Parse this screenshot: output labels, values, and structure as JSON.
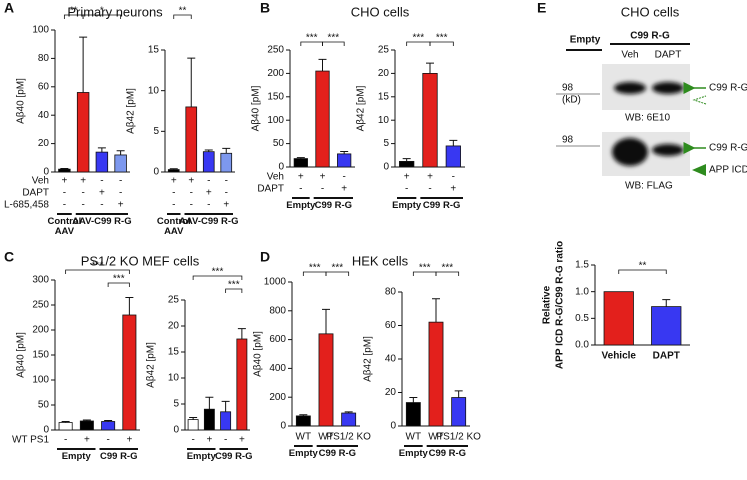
{
  "panels": [
    {
      "letter": "A",
      "title": "Primary neurons"
    },
    {
      "letter": "B",
      "title": "CHO cells"
    },
    {
      "letter": "C",
      "title": "PS1/2 KO MEF cells"
    },
    {
      "letter": "D",
      "title": "HEK cells"
    },
    {
      "letter": "E",
      "title": "CHO cells"
    }
  ],
  "blot": {
    "header_empty": "Empty",
    "header_group": "C99 R-G",
    "lanes": [
      "Veh",
      "DAPT"
    ],
    "marker_1": "98",
    "unit": "(kD)",
    "band_1": "C99 R-G",
    "antibody_1": "WB: 6E10",
    "marker_2": "98",
    "band_2": "C99 R-G",
    "band_3": "APP ICD R-G",
    "antibody_2": "WB: FLAG"
  },
  "chart_data": [
    {
      "type": "bar",
      "ylabel": "Aβ40 [pM]",
      "ylim": [
        0,
        100
      ],
      "yticks": [
        0,
        20,
        40,
        60,
        80,
        100
      ],
      "values": [
        2,
        56,
        14,
        12
      ],
      "errors": [
        0.5,
        39,
        3,
        3
      ],
      "colors": [
        "#000000",
        "#e3201c",
        "#3838f2",
        "#7d98ee"
      ],
      "row_labels": [
        "Veh",
        "DAPT",
        "L-685,458"
      ],
      "rows": [
        [
          "+",
          "+",
          "-",
          "-"
        ],
        [
          "-",
          "-",
          "+",
          "-"
        ],
        [
          "-",
          "-",
          "-",
          "+"
        ]
      ],
      "groups": [
        "Control AAV",
        "AAV-C99 R-G"
      ],
      "annotations": [
        "**",
        "*"
      ]
    },
    {
      "type": "bar",
      "ylabel": "Aβ42 [pM]",
      "ylim": [
        0,
        15
      ],
      "yticks": [
        0,
        5,
        10,
        15
      ],
      "values": [
        0.3,
        8,
        2.5,
        2.3
      ],
      "errors": [
        0.1,
        6,
        0.2,
        0.6
      ],
      "colors": [
        "#000000",
        "#e3201c",
        "#3838f2",
        "#7d98ee"
      ],
      "rows": [
        [
          "+",
          "+",
          "-",
          "-"
        ],
        [
          "-",
          "-",
          "+",
          "-"
        ],
        [
          "-",
          "-",
          "-",
          "+"
        ]
      ],
      "groups": [
        "Control AAV",
        "AAV-C99 R-G"
      ],
      "annotations": [
        "**"
      ]
    },
    {
      "type": "bar",
      "ylabel": "Aβ40 [pM]",
      "ylim": [
        0,
        250
      ],
      "yticks": [
        0,
        50,
        100,
        150,
        200,
        250
      ],
      "values": [
        18,
        205,
        28
      ],
      "errors": [
        2,
        25,
        5
      ],
      "colors": [
        "#000000",
        "#e3201c",
        "#3838f2"
      ],
      "row_labels": [
        "Veh",
        "DAPT"
      ],
      "rows": [
        [
          "+",
          "+",
          "-"
        ],
        [
          "-",
          "-",
          "+"
        ]
      ],
      "groups": [
        "Empty",
        "C99 R-G"
      ],
      "annotations": [
        "***",
        "***"
      ]
    },
    {
      "type": "bar",
      "ylabel": "Aβ42 [pM]",
      "ylim": [
        0,
        25
      ],
      "yticks": [
        0,
        5,
        10,
        15,
        20,
        25
      ],
      "values": [
        1.2,
        20,
        4.5
      ],
      "errors": [
        0.6,
        2.2,
        1.2
      ],
      "colors": [
        "#000000",
        "#e3201c",
        "#3838f2"
      ],
      "rows": [
        [
          "+",
          "+",
          "-"
        ],
        [
          "-",
          "-",
          "+"
        ]
      ],
      "groups": [
        "Empty",
        "C99 R-G"
      ],
      "annotations": [
        "***",
        "***"
      ]
    },
    {
      "type": "bar",
      "ylabel": "Aβ40 [pM]",
      "ylim": [
        0,
        300
      ],
      "yticks": [
        0,
        50,
        100,
        150,
        200,
        250,
        300
      ],
      "values": [
        15,
        18,
        17,
        230
      ],
      "errors": [
        2,
        2,
        2,
        35
      ],
      "colors": [
        "#ffffff",
        "#000000",
        "#3838f2",
        "#e3201c"
      ],
      "row_labels": [
        "WT PS1"
      ],
      "rows": [
        [
          "-",
          "+",
          "-",
          "+"
        ]
      ],
      "groups": [
        "Empty",
        "C99 R-G"
      ],
      "annotations": [
        "***",
        "***"
      ]
    },
    {
      "type": "bar",
      "ylabel": "Aβ42 [pM]",
      "ylim": [
        0,
        25
      ],
      "yticks": [
        0,
        5,
        10,
        15,
        20,
        25
      ],
      "values": [
        2,
        4,
        3.5,
        17.5
      ],
      "errors": [
        0.4,
        2.3,
        2,
        2
      ],
      "colors": [
        "#ffffff",
        "#000000",
        "#3838f2",
        "#e3201c"
      ],
      "rows": [
        [
          "-",
          "+",
          "-",
          "+"
        ]
      ],
      "groups": [
        "Empty",
        "C99 R-G"
      ],
      "annotations": [
        "***",
        "***"
      ]
    },
    {
      "type": "bar",
      "ylabel": "Aβ40 [pM]",
      "ylim": [
        0,
        1000
      ],
      "yticks": [
        0,
        200,
        400,
        600,
        800,
        1000
      ],
      "values": [
        70,
        640,
        90
      ],
      "errors": [
        8,
        170,
        8
      ],
      "colors": [
        "#000000",
        "#e3201c",
        "#3838f2"
      ],
      "rows": [
        [
          "WT",
          "WT",
          "PS1/2 KO"
        ]
      ],
      "groups": [
        "Empty",
        "C99 R-G"
      ],
      "annotations": [
        "***",
        "***"
      ]
    },
    {
      "type": "bar",
      "ylabel": "Aβ42 [pM]",
      "ylim": [
        0,
        80
      ],
      "yticks": [
        0,
        20,
        40,
        60,
        80
      ],
      "values": [
        14,
        62,
        17
      ],
      "errors": [
        3,
        14,
        4
      ],
      "colors": [
        "#000000",
        "#e3201c",
        "#3838f2"
      ],
      "rows": [
        [
          "WT",
          "WT",
          "PS1/2 KO"
        ]
      ],
      "groups": [
        "Empty",
        "C99 R-G"
      ],
      "annotations": [
        "***",
        "***"
      ]
    },
    {
      "type": "bar",
      "ylabel": [
        "Relative",
        "APP ICD R-G/C99 R-G ratio"
      ],
      "ylim": [
        0,
        1.5
      ],
      "yticks": [
        {
          "value": 0,
          "label": "0.0"
        },
        {
          "value": 0.5,
          "label": "0.5"
        },
        {
          "value": 1,
          "label": "1.0"
        },
        {
          "value": 1.5,
          "label": "1.5"
        }
      ],
      "categories": [
        "Vehicle",
        "DAPT"
      ],
      "values": [
        1.0,
        0.72
      ],
      "errors": [
        null,
        0.13
      ],
      "colors": [
        "#e3201c",
        "#3838f2"
      ],
      "annotations": [
        "**"
      ]
    }
  ]
}
